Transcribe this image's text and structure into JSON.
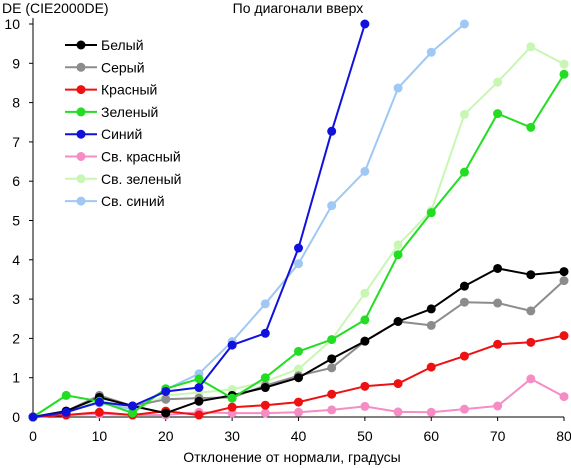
{
  "chart_data": {
    "type": "line",
    "title": "По диагонали вверх",
    "ylabel": "DE (CIE2000DE)",
    "xlabel": "Отклонение от нормали, градусы",
    "xlim": [
      0,
      80
    ],
    "ylim": [
      0,
      10
    ],
    "xticks": [
      0,
      10,
      20,
      30,
      40,
      50,
      60,
      70,
      80
    ],
    "yticks": [
      0,
      1,
      2,
      3,
      4,
      5,
      6,
      7,
      8,
      9,
      10
    ],
    "grid": false,
    "legend_position": "top-left",
    "x": [
      0,
      5,
      10,
      15,
      20,
      25,
      30,
      35,
      40,
      45,
      50,
      55,
      60,
      65,
      70,
      75,
      80
    ],
    "series": [
      {
        "name": "Белый",
        "color": "#000000",
        "values": [
          0,
          0.15,
          0.5,
          0.28,
          0.1,
          0.4,
          0.55,
          0.75,
          1.0,
          1.48,
          1.93,
          2.43,
          2.75,
          3.33,
          3.78,
          3.62,
          3.7
        ]
      },
      {
        "name": "Серый",
        "color": "#8c8c8c",
        "values": [
          0,
          0.15,
          0.55,
          0.28,
          0.45,
          0.48,
          0.5,
          0.8,
          1.05,
          1.25,
          1.93,
          2.43,
          2.33,
          2.92,
          2.9,
          2.7,
          3.47
        ]
      },
      {
        "name": "Красный",
        "color": "#ee1111",
        "values": [
          0,
          0.05,
          0.12,
          0.05,
          0.15,
          0.05,
          0.25,
          0.3,
          0.38,
          0.58,
          0.78,
          0.85,
          1.27,
          1.55,
          1.85,
          1.9,
          2.07
        ]
      },
      {
        "name": "Зеленый",
        "color": "#22dd22",
        "values": [
          0,
          0.55,
          0.4,
          0.1,
          0.72,
          0.97,
          0.48,
          1.0,
          1.67,
          1.97,
          2.47,
          4.13,
          5.2,
          6.23,
          7.72,
          7.37,
          8.72
        ]
      },
      {
        "name": "Синий",
        "color": "#1111dd",
        "values": [
          0,
          0.12,
          0.38,
          0.28,
          0.65,
          0.75,
          1.83,
          2.13,
          4.3,
          7.27,
          10.0,
          null,
          null,
          null,
          null,
          null,
          null
        ]
      },
      {
        "name": "Св. красный",
        "color": "#f58cc4",
        "values": [
          0,
          0.05,
          0.08,
          0.05,
          0.05,
          0.12,
          0.1,
          0.1,
          0.12,
          0.18,
          0.27,
          0.13,
          0.12,
          0.2,
          0.28,
          0.97,
          0.52
        ]
      },
      {
        "name": "Св. зеленый",
        "color": "#c8f7b4",
        "values": [
          0,
          0.12,
          0.45,
          0.15,
          0.55,
          0.62,
          0.7,
          0.9,
          1.22,
          1.97,
          3.15,
          4.38,
          5.25,
          7.7,
          8.52,
          9.42,
          8.98
        ]
      },
      {
        "name": "Св. синий",
        "color": "#9fc8f5",
        "values": [
          0,
          0.15,
          0.35,
          0.2,
          0.7,
          1.1,
          1.92,
          2.88,
          3.9,
          5.38,
          6.25,
          8.37,
          9.28,
          10.0,
          null,
          null,
          null
        ]
      }
    ]
  }
}
